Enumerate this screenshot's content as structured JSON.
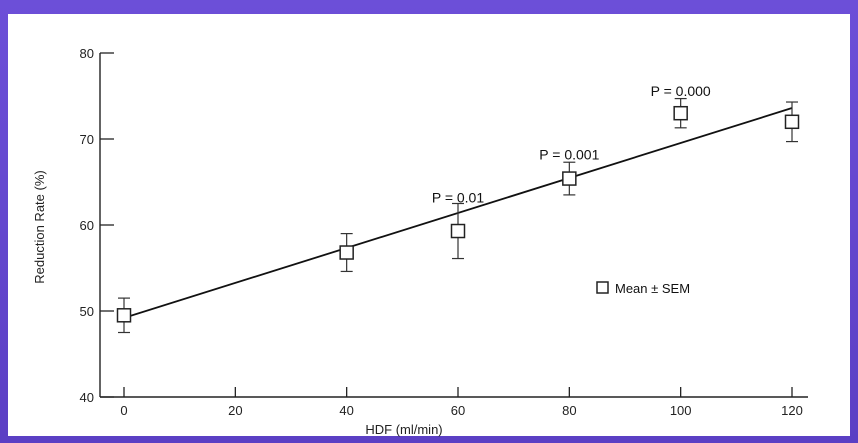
{
  "chart_data": {
    "type": "scatter",
    "title": "",
    "xlabel": "HDF (ml/min)",
    "ylabel": "Reduction Rate (%)",
    "xlim": [
      -5,
      125
    ],
    "ylim": [
      40,
      80
    ],
    "x_ticks": [
      0,
      20,
      40,
      60,
      80,
      100,
      120
    ],
    "y_ticks": [
      40,
      50,
      60,
      70,
      80
    ],
    "series": [
      {
        "name": "Mean ± SEM",
        "points": [
          {
            "x": 0,
            "y": 49.5,
            "err": 2.0
          },
          {
            "x": 40,
            "y": 56.8,
            "err": 2.2
          },
          {
            "x": 60,
            "y": 59.3,
            "err": 3.2
          },
          {
            "x": 80,
            "y": 65.4,
            "err": 1.9
          },
          {
            "x": 100,
            "y": 73.0,
            "err": 1.7
          },
          {
            "x": 120,
            "y": 72.0,
            "err": 2.3
          }
        ]
      }
    ],
    "regression_line": {
      "x": [
        0,
        120
      ],
      "y": [
        49.2,
        73.6
      ]
    },
    "annotations": [
      {
        "text": "P = 0.01",
        "x": 60,
        "y": 62.6
      },
      {
        "text": "P = 0.001",
        "x": 80,
        "y": 67.6
      },
      {
        "text": "P = 0.000",
        "x": 100,
        "y": 75.0
      }
    ],
    "legend": {
      "label": "Mean ± SEM",
      "position": "right"
    },
    "grid": false
  }
}
